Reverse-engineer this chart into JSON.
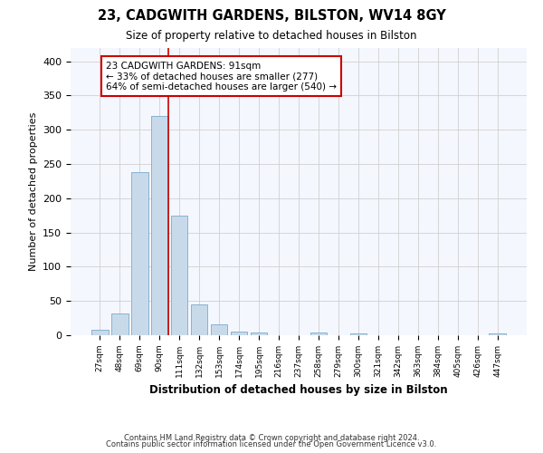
{
  "title1": "23, CADGWITH GARDENS, BILSTON, WV14 8GY",
  "title2": "Size of property relative to detached houses in Bilston",
  "xlabel": "Distribution of detached houses by size in Bilston",
  "ylabel": "Number of detached properties",
  "bar_color": "#c8daea",
  "bar_edge_color": "#7aaac8",
  "categories": [
    "27sqm",
    "48sqm",
    "69sqm",
    "90sqm",
    "111sqm",
    "132sqm",
    "153sqm",
    "174sqm",
    "195sqm",
    "216sqm",
    "237sqm",
    "258sqm",
    "279sqm",
    "300sqm",
    "321sqm",
    "342sqm",
    "363sqm",
    "384sqm",
    "405sqm",
    "426sqm",
    "447sqm"
  ],
  "values": [
    8,
    32,
    238,
    320,
    175,
    45,
    16,
    5,
    4,
    0,
    0,
    4,
    0,
    2,
    0,
    0,
    0,
    0,
    0,
    0,
    2
  ],
  "ylim": [
    0,
    420
  ],
  "yticks": [
    0,
    50,
    100,
    150,
    200,
    250,
    300,
    350,
    400
  ],
  "annotation_text": "23 CADGWITH GARDENS: 91sqm\n← 33% of detached houses are smaller (277)\n64% of semi-detached houses are larger (540) →",
  "annotation_box_color": "white",
  "annotation_box_edge_color": "#cc0000",
  "vline_color": "#cc0000",
  "footer1": "Contains HM Land Registry data © Crown copyright and database right 2024.",
  "footer2": "Contains public sector information licensed under the Open Government Licence v3.0.",
  "background_color": "#ffffff",
  "plot_bg_color": "#f5f7ff",
  "grid_color": "#d0d0d0"
}
